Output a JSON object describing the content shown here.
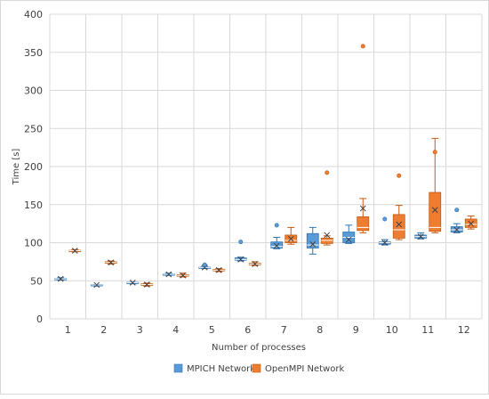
{
  "chart_data": {
    "type": "box",
    "xlabel": "Number of processes",
    "ylabel": "Time [s]",
    "categories": [
      "1",
      "2",
      "3",
      "4",
      "5",
      "6",
      "7",
      "8",
      "9",
      "10",
      "11",
      "12"
    ],
    "ylim": [
      0,
      400
    ],
    "yticks": [
      0,
      50,
      100,
      150,
      200,
      250,
      300,
      350,
      400
    ],
    "grid": true,
    "legend_position": "bottom",
    "series": [
      {
        "name": "MPICH Network",
        "color": "#5B9BD5",
        "stroke": "#2E75B6",
        "boxes": [
          {
            "min": 51,
            "q1": 52,
            "median": 52.5,
            "q3": 53,
            "max": 54,
            "mean": 52.5,
            "outliers": []
          },
          {
            "min": 43,
            "q1": 44,
            "median": 44.5,
            "q3": 45,
            "max": 45,
            "mean": 44.5,
            "outliers": []
          },
          {
            "min": 46,
            "q1": 47,
            "median": 47.5,
            "q3": 48,
            "max": 48,
            "mean": 47.5,
            "outliers": []
          },
          {
            "min": 57,
            "q1": 58,
            "median": 58.5,
            "q3": 59,
            "max": 60,
            "mean": 58.5,
            "outliers": []
          },
          {
            "min": 66,
            "q1": 67,
            "median": 67.5,
            "q3": 68,
            "max": 69,
            "mean": 67.5,
            "outliers": [
              71
            ]
          },
          {
            "min": 76,
            "q1": 77,
            "median": 78,
            "q3": 80,
            "max": 81,
            "mean": 78,
            "outliers": [
              101
            ]
          },
          {
            "min": 92,
            "q1": 93,
            "median": 95,
            "q3": 101,
            "max": 107,
            "mean": 96,
            "outliers": [
              123
            ]
          },
          {
            "min": 85,
            "q1": 93,
            "median": 97,
            "q3": 112,
            "max": 120,
            "mean": 98,
            "outliers": []
          },
          {
            "min": 99,
            "q1": 100,
            "median": 107,
            "q3": 114,
            "max": 123,
            "mean": 104,
            "outliers": []
          },
          {
            "min": 97,
            "q1": 98,
            "median": 100,
            "q3": 101,
            "max": 104,
            "mean": 100,
            "outliers": [
              131
            ]
          },
          {
            "min": 105,
            "q1": 106,
            "median": 108,
            "q3": 110,
            "max": 113,
            "mean": 108,
            "outliers": []
          },
          {
            "min": 113,
            "q1": 114,
            "median": 117,
            "q3": 121,
            "max": 125,
            "mean": 117,
            "outliers": [
              143
            ]
          }
        ]
      },
      {
        "name": "OpenMPI Network",
        "color": "#ED7D31",
        "stroke": "#C55A11",
        "boxes": [
          {
            "min": 88,
            "q1": 89,
            "median": 89.5,
            "q3": 90,
            "max": 91,
            "mean": 89.5,
            "outliers": []
          },
          {
            "min": 72,
            "q1": 73,
            "median": 74,
            "q3": 75,
            "max": 76,
            "mean": 74,
            "outliers": []
          },
          {
            "min": 43,
            "q1": 44,
            "median": 45,
            "q3": 46,
            "max": 47,
            "mean": 45,
            "outliers": []
          },
          {
            "min": 55,
            "q1": 56,
            "median": 57,
            "q3": 58,
            "max": 60,
            "mean": 57,
            "outliers": []
          },
          {
            "min": 62,
            "q1": 63,
            "median": 64,
            "q3": 65,
            "max": 66,
            "mean": 64,
            "outliers": []
          },
          {
            "min": 70,
            "q1": 71,
            "median": 72,
            "q3": 73,
            "max": 75,
            "mean": 72,
            "outliers": []
          },
          {
            "min": 98,
            "q1": 100,
            "median": 103,
            "q3": 110,
            "max": 120,
            "mean": 105,
            "outliers": []
          },
          {
            "min": 97,
            "q1": 99,
            "median": 103,
            "q3": 106,
            "max": 109,
            "mean": 110,
            "outliers": [
              192
            ]
          },
          {
            "min": 113,
            "q1": 116,
            "median": 120,
            "q3": 134,
            "max": 158,
            "mean": 145,
            "outliers": [
              358
            ]
          },
          {
            "min": 104,
            "q1": 106,
            "median": 117,
            "q3": 137,
            "max": 149,
            "mean": 124,
            "outliers": [
              188
            ]
          },
          {
            "min": 113,
            "q1": 115,
            "median": 120,
            "q3": 166,
            "max": 237,
            "mean": 143,
            "outliers": [
              219
            ]
          },
          {
            "min": 118,
            "q1": 120,
            "median": 124,
            "q3": 131,
            "max": 135,
            "mean": 125,
            "outliers": []
          }
        ]
      }
    ]
  }
}
